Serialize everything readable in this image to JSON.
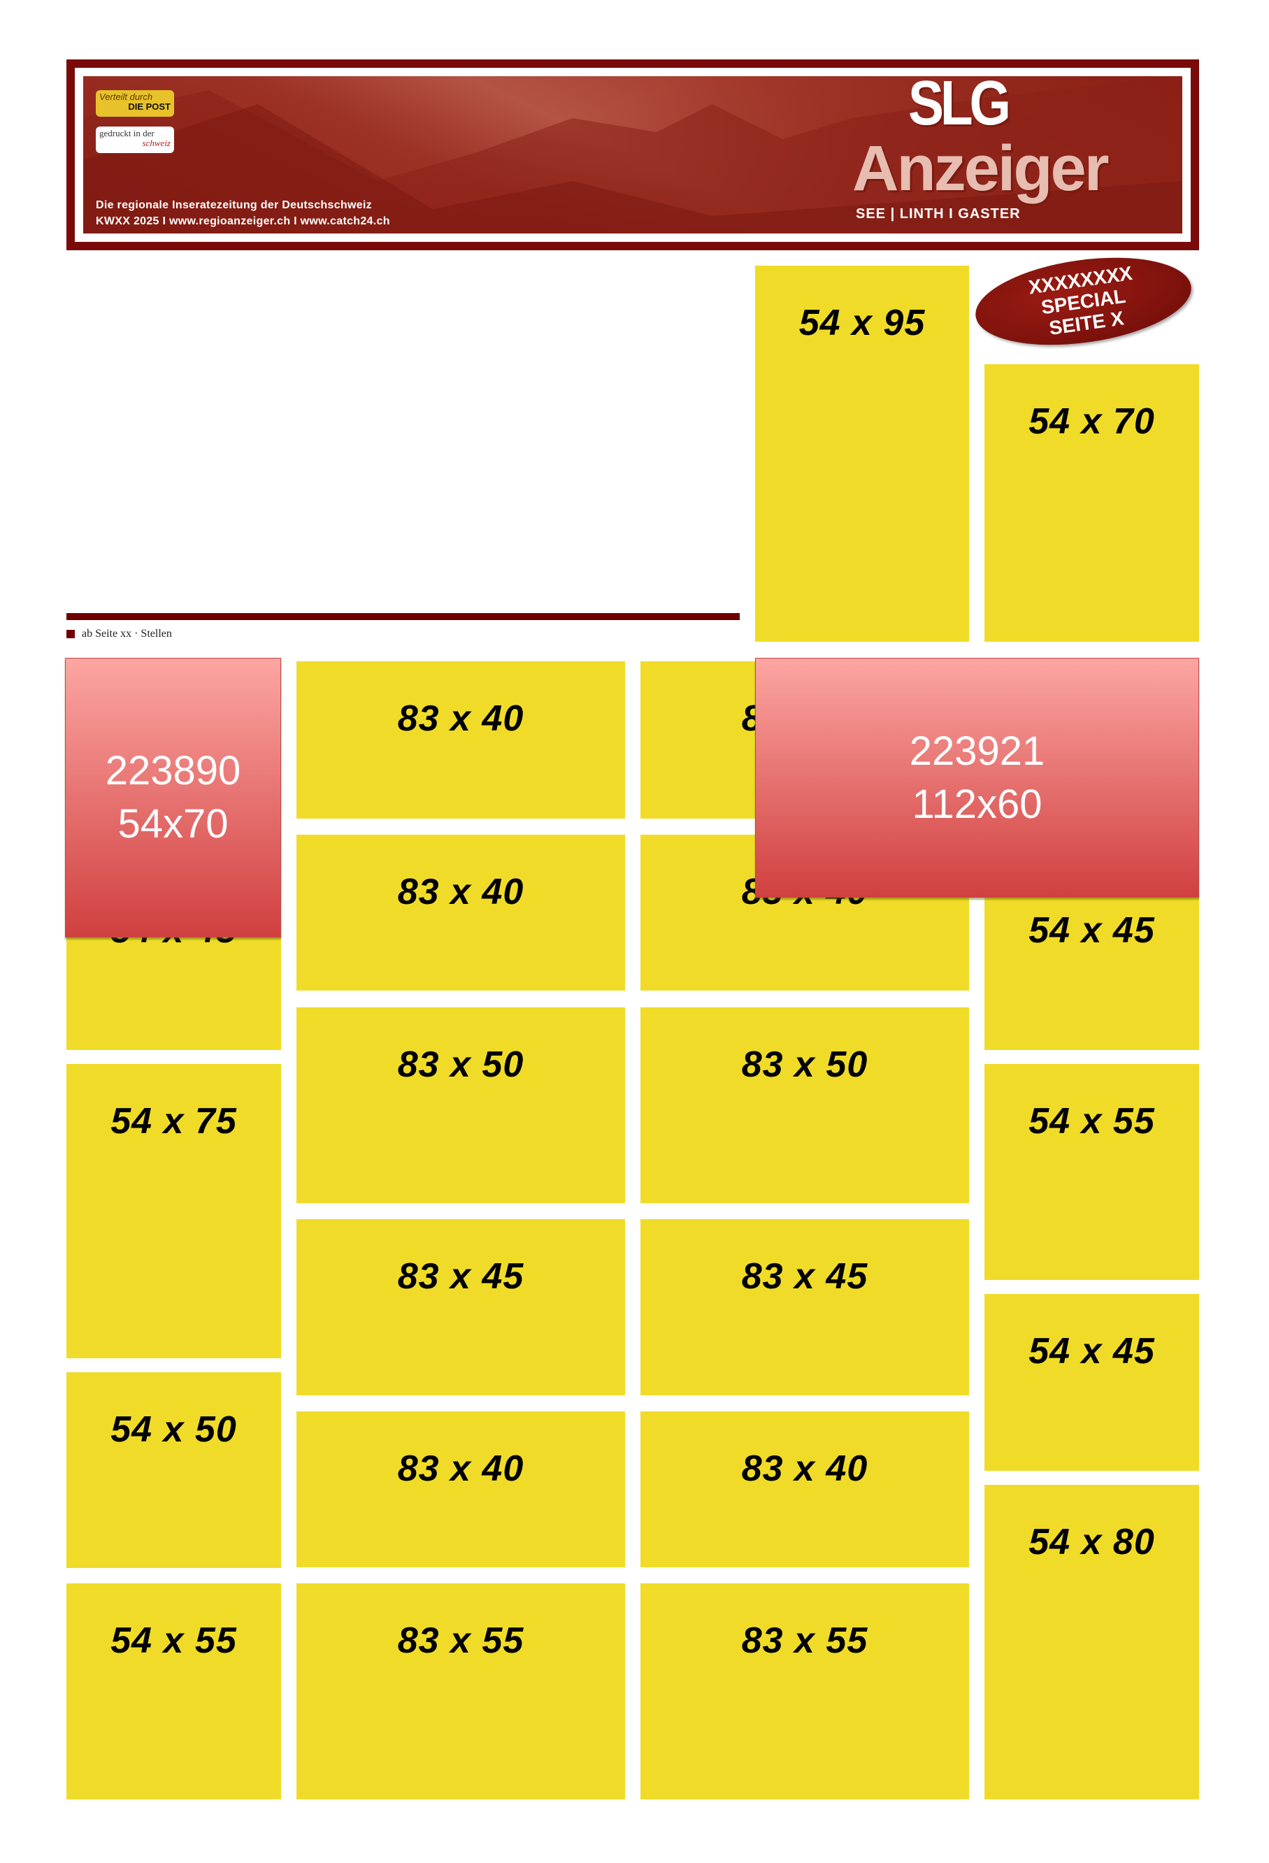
{
  "header": {
    "badge_post_line1": "Verteilt durch",
    "badge_post_line2": "DIE POST",
    "badge_print_line1": "gedruckt in der",
    "badge_print_line2": "schweiz",
    "tagline": "Die regionale Inseratezeitung der Deutschschweiz",
    "issue_line": "KWXX 2025 I www.regioanzeiger.ch I www.catch24.ch",
    "logo_top": "SLG",
    "logo_main": "Anzeiger",
    "logo_sub": "SEE  |  LINTH  I  GASTER"
  },
  "special_badge": {
    "line1": "XXXXXXXX",
    "line2": "SPECIAL",
    "line3": "SEITE X"
  },
  "section_caption": "ab Seite xx · Stellen",
  "colors": {
    "ad_slot": "#f0dc28",
    "brand_red": "#7a0a0a",
    "booked_top": "#fca6a2",
    "booked_bottom": "#d04040"
  },
  "ad_slots": [
    {
      "label": "54 x 95"
    },
    {
      "label": "54 x 70"
    },
    {
      "label": "83 x 40"
    },
    {
      "label": "83 x 40"
    },
    {
      "label": "83 x 50"
    },
    {
      "label": "83 x 45"
    },
    {
      "label": "83 x 40"
    },
    {
      "label": "83 x 55"
    },
    {
      "label": "83 x 40"
    },
    {
      "label": "83 x 40"
    },
    {
      "label": "83 x 50"
    },
    {
      "label": "83 x 45"
    },
    {
      "label": "83 x 40"
    },
    {
      "label": "83 x 55"
    },
    {
      "label": "54 x 45"
    },
    {
      "label": "54 x 75"
    },
    {
      "label": "54 x 50"
    },
    {
      "label": "54 x 55"
    },
    {
      "label": "54 x 45"
    },
    {
      "label": "54 x 55"
    },
    {
      "label": "54 x 45"
    },
    {
      "label": "54 x 80"
    }
  ],
  "booked_ads": [
    {
      "id": "223890",
      "size": "54x70"
    },
    {
      "id": "223921",
      "size": "112x60"
    }
  ]
}
